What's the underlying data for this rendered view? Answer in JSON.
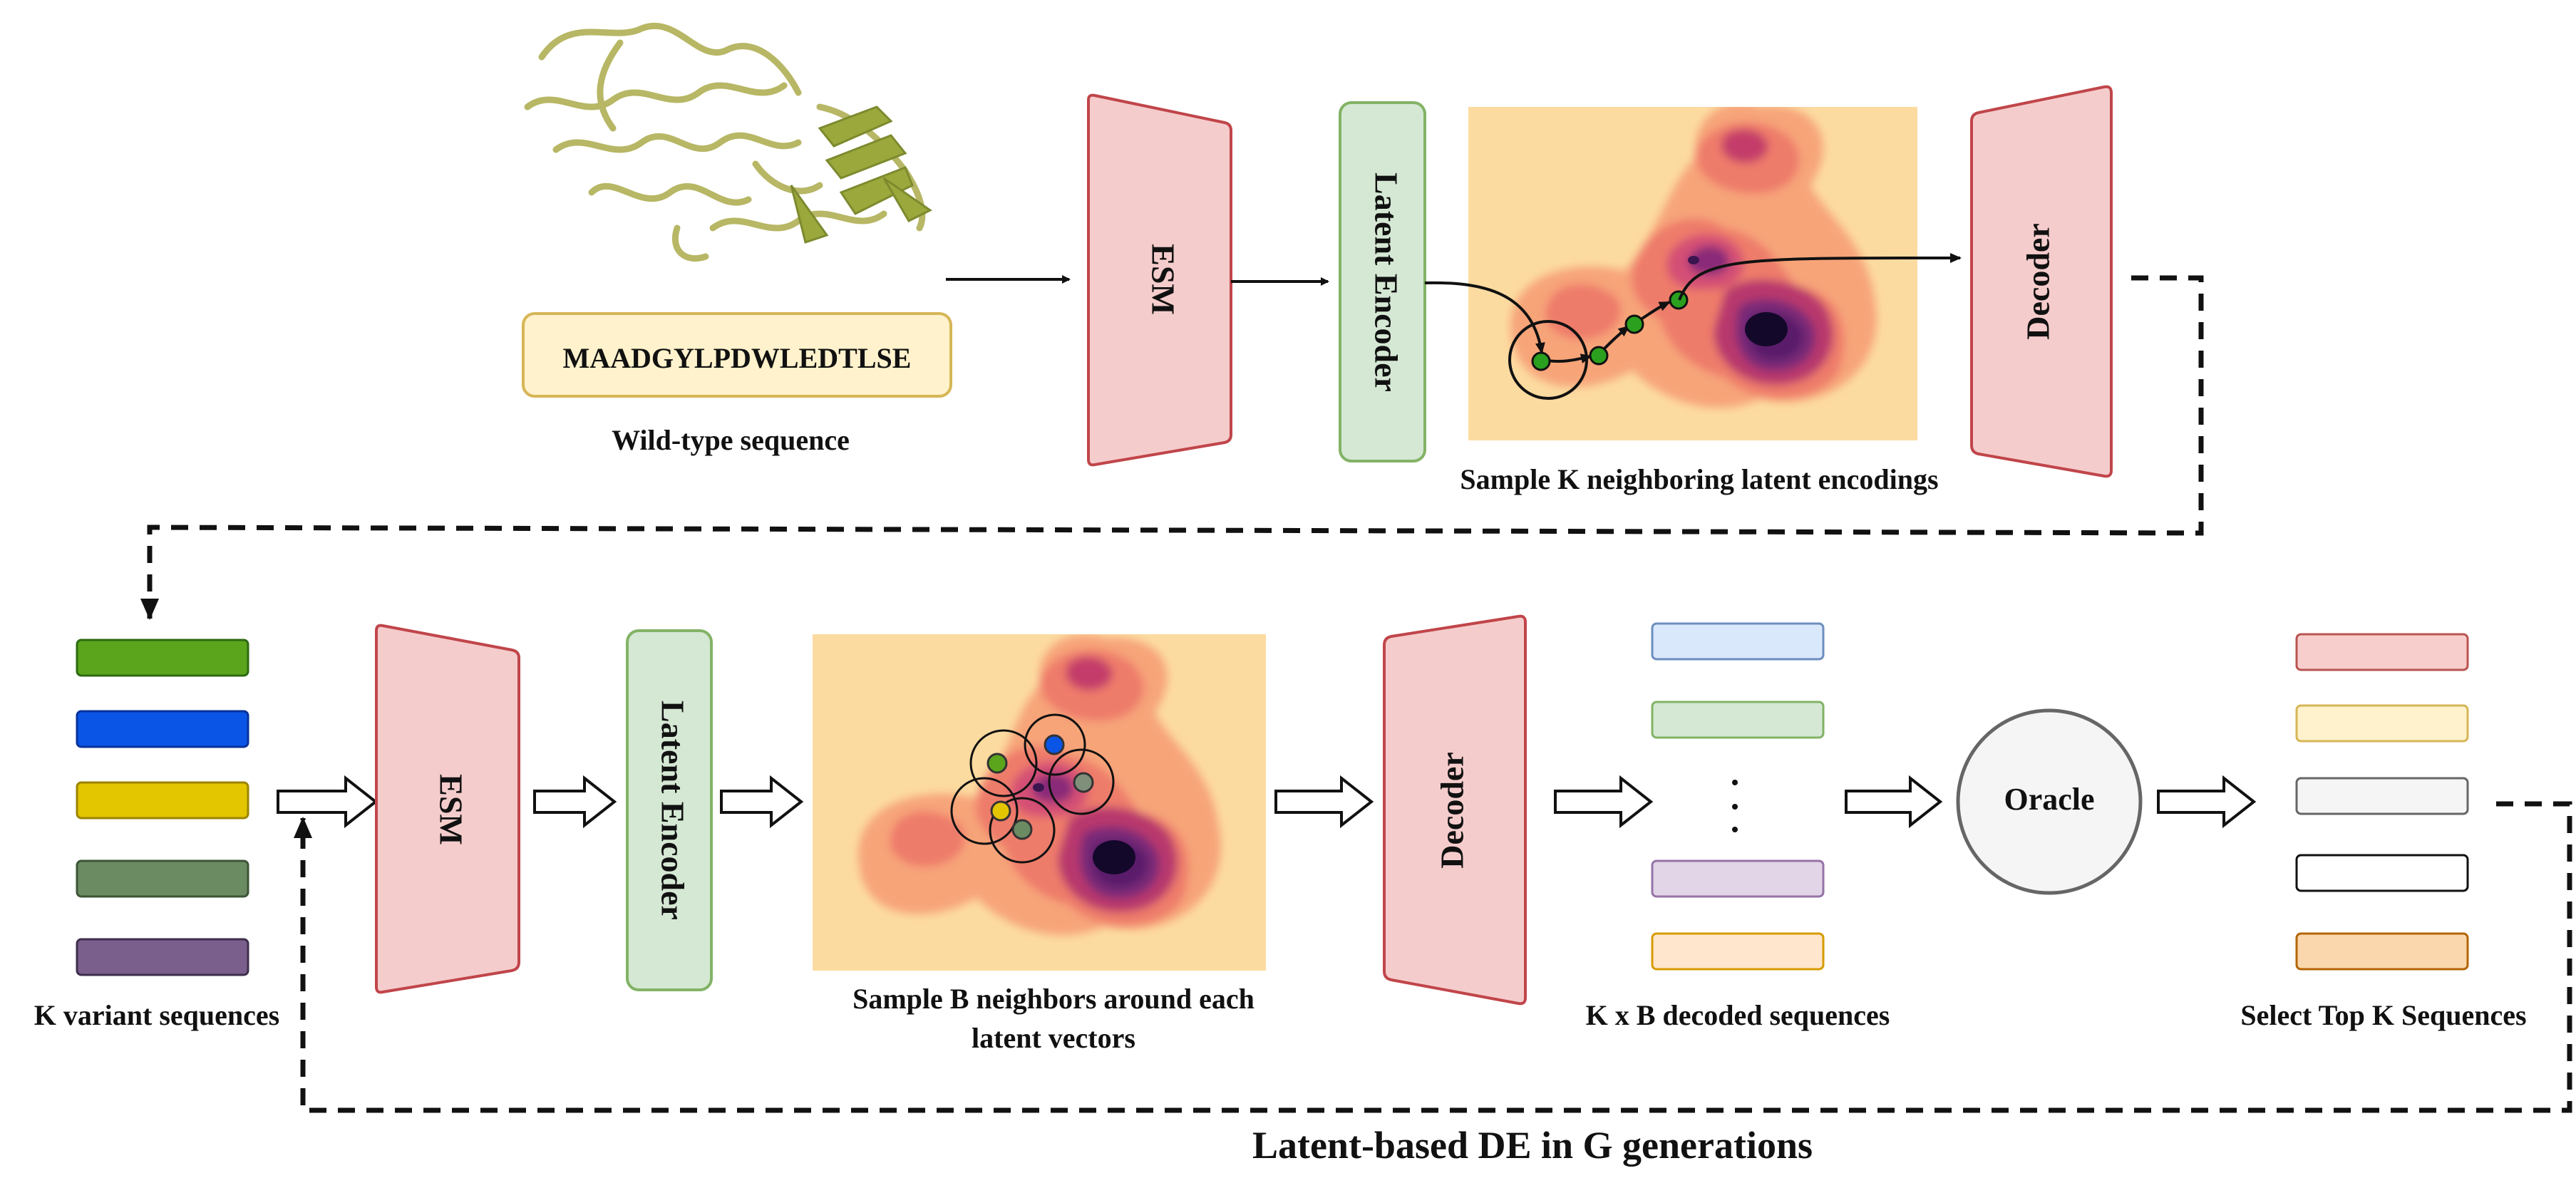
{
  "top_row": {
    "wild_type_sequence": "MAADGYLPDWLEDTLSE",
    "wild_type_label": "Wild-type sequence",
    "esm_label": "ESM",
    "latent_encoder_label": "Latent Encoder",
    "sample_label": "Sample K neighboring latent encodings",
    "decoder_label": "Decoder"
  },
  "bottom_row": {
    "variants_label": "K variant sequences",
    "variant_colors": [
      "#5aa51c",
      "#0a55e6",
      "#e3c500",
      "#6b8b63",
      "#7a5f8c"
    ],
    "esm_label": "ESM",
    "latent_encoder_label": "Latent Encoder",
    "sample_label_line1": "Sample B neighbors around each",
    "sample_label_line2": "latent vectors",
    "decoder_label": "Decoder",
    "decoded_label": "K x B decoded sequences",
    "decoded_ellipsis": "·\n·\n·",
    "oracle_label": "Oracle",
    "select_label": "Select Top K Sequences"
  },
  "loop_label": "Latent-based DE in G generations",
  "colors": {
    "esm_fill": "#f5cccc",
    "esm_stroke": "#c0454a",
    "encoder_fill": "#d5e8d4",
    "encoder_stroke": "#82b366",
    "sequence_fill": "#fff2cc",
    "sequence_stroke": "#d6b656",
    "landscape_bg": "#fcdba0"
  }
}
